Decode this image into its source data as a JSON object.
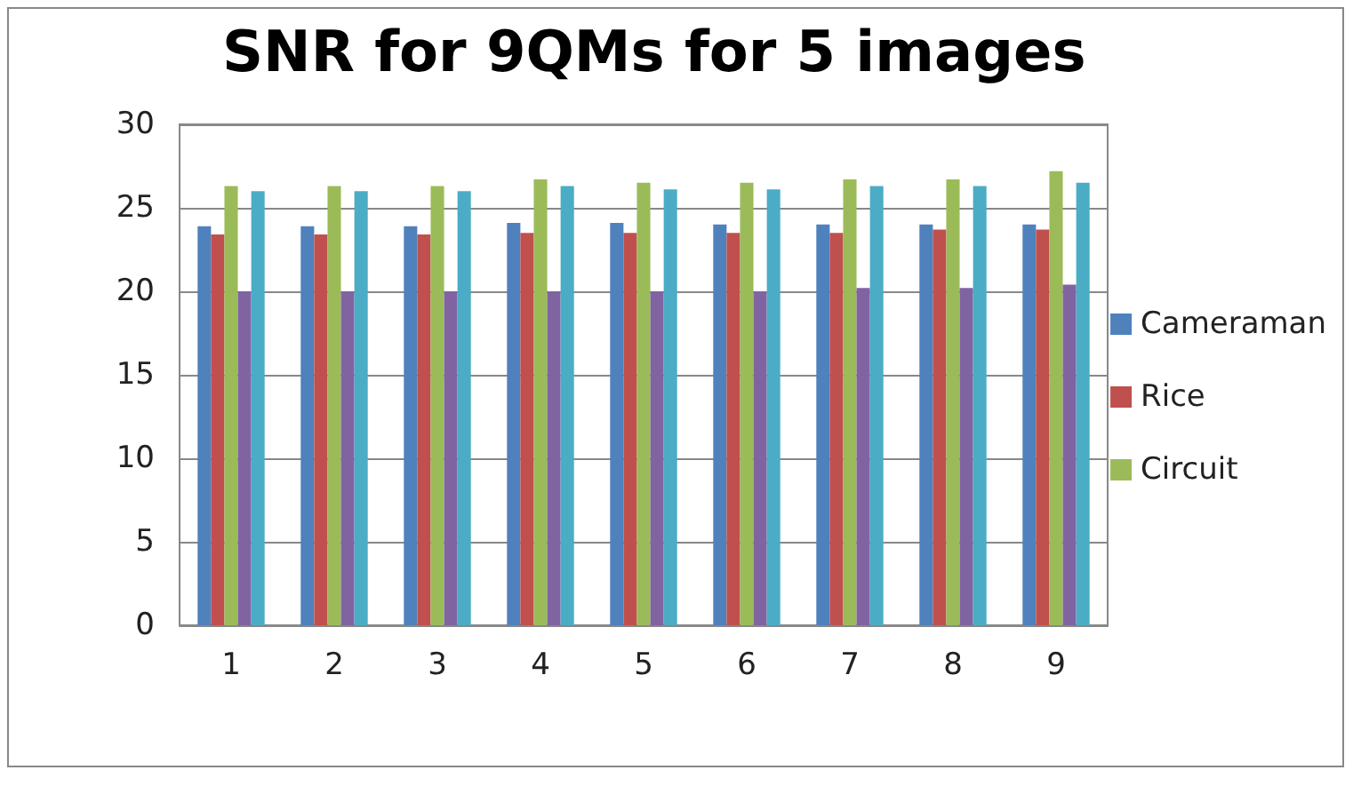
{
  "chart_data": {
    "type": "bar",
    "title": "SNR for 9QMs for 5 images",
    "categories": [
      "1",
      "2",
      "3",
      "4",
      "5",
      "6",
      "7",
      "8",
      "9"
    ],
    "series": [
      {
        "name": "Cameraman",
        "color": "#4f81bd",
        "values": [
          23.9,
          23.9,
          23.9,
          24.1,
          24.1,
          24.0,
          24.0,
          24.0,
          24.0
        ]
      },
      {
        "name": "Rice",
        "color": "#c0504d",
        "values": [
          23.4,
          23.4,
          23.4,
          23.5,
          23.5,
          23.5,
          23.5,
          23.7,
          23.7
        ]
      },
      {
        "name": "Circuit",
        "color": "#9bbb59",
        "values": [
          26.3,
          26.3,
          26.3,
          26.7,
          26.5,
          26.5,
          26.7,
          26.7,
          27.2
        ]
      },
      {
        "color": "#8064a2",
        "values": [
          20.0,
          20.0,
          20.0,
          20.0,
          20.0,
          20.0,
          20.2,
          20.2,
          20.4
        ]
      },
      {
        "color": "#4bacc6",
        "values": [
          26.0,
          26.0,
          26.0,
          26.3,
          26.1,
          26.1,
          26.3,
          26.3,
          26.5
        ]
      }
    ],
    "ylim": [
      0,
      30
    ],
    "yticks": [
      0,
      5,
      10,
      15,
      20,
      25,
      30
    ],
    "grid": "y",
    "legend": "right"
  }
}
